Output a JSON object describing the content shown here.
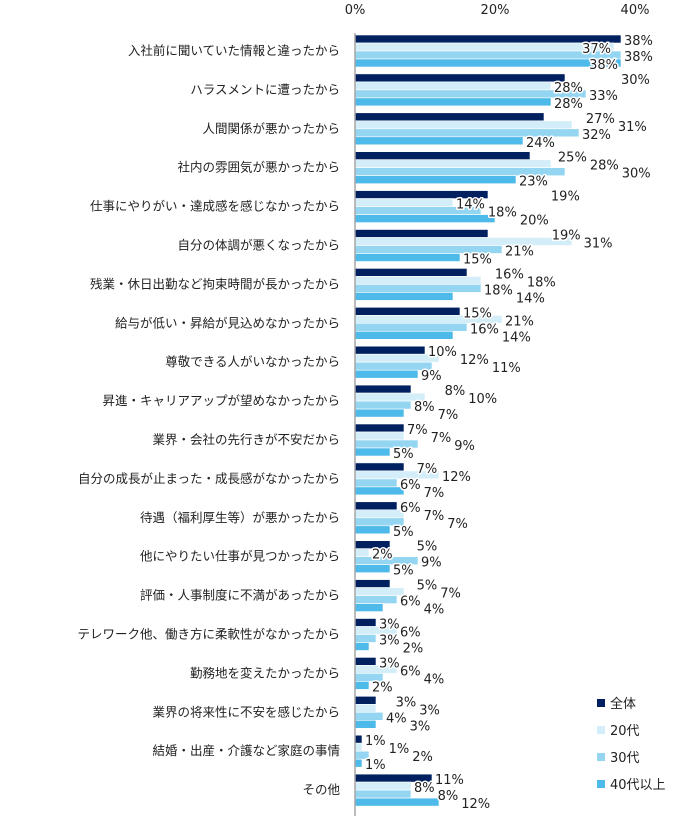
{
  "chart_data": {
    "type": "bar",
    "orientation": "horizontal",
    "xlim": [
      0,
      40
    ],
    "x_ticks": [
      "0%",
      "20%",
      "40%"
    ],
    "x_tick_values": [
      0,
      20,
      40
    ],
    "grid": false,
    "legend_position": "bottom-right",
    "categories": [
      "入社前に聞いていた情報と違ったから",
      "ハラスメントに遭ったから",
      "人間関係が悪かったから",
      "社内の雰囲気が悪かったから",
      "仕事にやりがい・達成感を感じなかったから",
      "自分の体調が悪くなったから",
      "残業・休日出勤など拘束時間が長かったから",
      "給与が低い・昇給が見込めなかったから",
      "尊敬できる人がいなかったから",
      "昇進・キャリアアップが望めなかったから",
      "業界・会社の先行きが不安だから",
      "自分の成長が止まった・成長感がなかったから",
      "待遇（福利厚生等）が悪かったから",
      "他にやりたい仕事が見つかったから",
      "評価・人事制度に不満があったから",
      "テレワーク他、働き方に柔軟性がなかったから",
      "勤務地を変えたかったから",
      "業界の将来性に不安を感じたから",
      "結婚・出産・介護など家庭の事情",
      "その他"
    ],
    "series": [
      {
        "name": "全体",
        "color": "#002060",
        "values": [
          38,
          30,
          27,
          25,
          19,
          19,
          16,
          15,
          10,
          8,
          7,
          7,
          6,
          5,
          5,
          3,
          3,
          3,
          1,
          11
        ]
      },
      {
        "name": "20代",
        "color": "#d3eef9",
        "values": [
          37,
          28,
          31,
          28,
          14,
          31,
          18,
          21,
          12,
          10,
          7,
          12,
          7,
          2,
          7,
          6,
          6,
          3,
          1,
          8
        ]
      },
      {
        "name": "30代",
        "color": "#94d6f1",
        "values": [
          38,
          33,
          32,
          30,
          18,
          21,
          18,
          16,
          11,
          8,
          9,
          6,
          7,
          9,
          6,
          3,
          4,
          4,
          2,
          8
        ]
      },
      {
        "name": "40代以上",
        "color": "#4dbae9",
        "values": [
          38,
          28,
          24,
          23,
          20,
          15,
          14,
          14,
          9,
          7,
          5,
          7,
          5,
          5,
          4,
          2,
          2,
          3,
          1,
          12
        ]
      }
    ],
    "value_suffix": "%"
  }
}
